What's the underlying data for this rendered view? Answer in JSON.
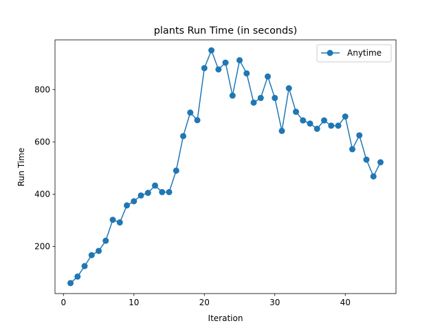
{
  "chart_data": {
    "type": "line",
    "title": "plants Run Time (in seconds)",
    "xlabel": "Iteration",
    "ylabel": "Run Time",
    "xlim": [
      -1.2,
      47.2
    ],
    "ylim": [
      20,
      990
    ],
    "xticks": [
      0,
      10,
      20,
      30,
      40
    ],
    "yticks": [
      200,
      400,
      600,
      800
    ],
    "grid": false,
    "legend_position": "upper right",
    "series": [
      {
        "name": "Anytime",
        "color": "#1f77b4",
        "marker": "circle",
        "x": [
          1,
          2,
          3,
          4,
          5,
          6,
          7,
          8,
          9,
          10,
          11,
          12,
          13,
          14,
          15,
          16,
          17,
          18,
          19,
          20,
          21,
          22,
          23,
          24,
          25,
          26,
          27,
          28,
          29,
          30,
          31,
          32,
          33,
          34,
          35,
          36,
          37,
          38,
          39,
          40,
          41,
          42,
          43,
          44,
          45
        ],
        "y": [
          60,
          85,
          125,
          167,
          183,
          222,
          302,
          292,
          357,
          373,
          395,
          405,
          433,
          408,
          408,
          490,
          622,
          712,
          683,
          882,
          950,
          877,
          903,
          777,
          912,
          862,
          750,
          768,
          850,
          768,
          642,
          805,
          715,
          682,
          670,
          650,
          682,
          662,
          662,
          697,
          572,
          625,
          532,
          468,
          522
        ]
      }
    ]
  }
}
